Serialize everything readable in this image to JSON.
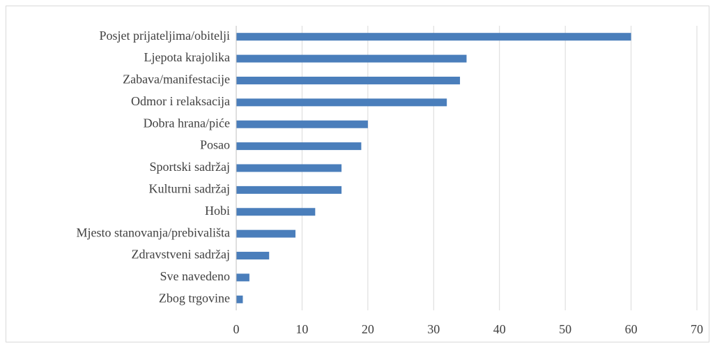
{
  "chart_data": {
    "type": "bar",
    "orientation": "horizontal",
    "categories": [
      "Posjet prijateljima/obitelji",
      "Ljepota krajolika",
      "Zabava/manifestacije",
      "Odmor i relaksacija",
      "Dobra hrana/piće",
      "Posao",
      "Sportski sadržaj",
      "Kulturni sadržaj",
      "Hobi",
      "Mjesto stanovanja/prebivališta",
      "Zdravstveni sadržaj",
      "Sve navedeno",
      "Zbog trgovine"
    ],
    "values": [
      60,
      35,
      34,
      32,
      20,
      19,
      16,
      16,
      12,
      9,
      5,
      2,
      1
    ],
    "color": "#4a7ebb",
    "xlim": [
      0,
      70
    ],
    "xticks": [
      0,
      10,
      20,
      30,
      40,
      50,
      60,
      70
    ],
    "grid": true
  }
}
